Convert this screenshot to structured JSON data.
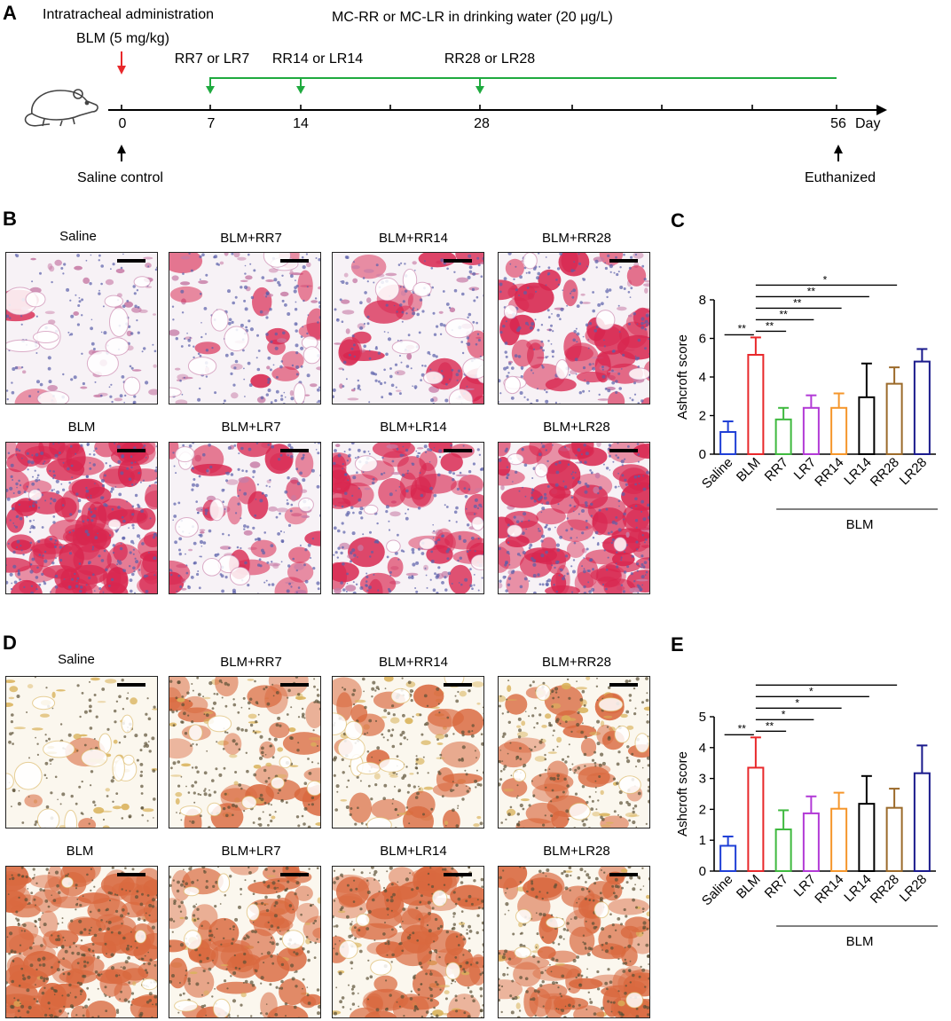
{
  "panel_labels": {
    "a": "A",
    "b": "B",
    "c": "C",
    "d": "D",
    "e": "E"
  },
  "timeline": {
    "admin_line1": "Intratracheal administration",
    "admin_line2": "BLM (5 mg/kg)",
    "water_label": "MC-RR or MC-LR in drinking water (20 μg/L)",
    "group7": "RR7 or LR7",
    "group14": "RR14 or LR14",
    "group28": "RR28 or LR28",
    "tick0": "0",
    "tick7": "7",
    "tick14": "14",
    "tick28": "28",
    "tick56": "56",
    "day_label": "Day",
    "saline_label": "Saline control",
    "euthanized_label": "Euthanized",
    "colors": {
      "axis": "#000000",
      "bleomycin_arrow": "#e8282b",
      "toxin_line": "#1faa3f"
    }
  },
  "images_b": {
    "titles": [
      "Saline",
      "BLM+RR7",
      "BLM+RR14",
      "BLM+RR28",
      "BLM",
      "BLM+LR7",
      "BLM+LR14",
      "BLM+LR28"
    ],
    "stain": "masson",
    "colors": {
      "base": "#f7f2f6",
      "tissue": "#c77ca6",
      "fibrosis": "#d8264f",
      "nuclei": "#5a5faa"
    }
  },
  "images_d": {
    "titles": [
      "Saline",
      "BLM+RR7",
      "BLM+RR14",
      "BLM+RR28",
      "BLM",
      "BLM+LR7",
      "BLM+LR14",
      "BLM+LR28"
    ],
    "stain": "sirius",
    "colors": {
      "base": "#fbf7ee",
      "tissue": "#d9b25a",
      "fibrosis": "#d9693f",
      "nuclei": "#5b5036"
    }
  },
  "chart_data": [
    {
      "type": "bar",
      "panel": "C",
      "ylabel": "Ashcroft score",
      "ylim": [
        0,
        8
      ],
      "yticks": [
        0,
        2,
        4,
        6,
        8
      ],
      "categories": [
        "Saline",
        "BLM",
        "RR7",
        "LR7",
        "RR14",
        "LR14",
        "RR28",
        "LR28"
      ],
      "values": [
        1.15,
        5.15,
        1.8,
        2.4,
        2.4,
        2.95,
        3.65,
        4.8
      ],
      "errors": [
        0.55,
        0.9,
        0.6,
        0.65,
        0.75,
        1.75,
        0.85,
        0.65
      ],
      "colors": [
        "#1f3fd6",
        "#e8282b",
        "#3fb93f",
        "#b23ad6",
        "#f5962b",
        "#000000",
        "#9b6a2a",
        "#1a1a8c"
      ],
      "group_label": "BLM",
      "significance": [
        {
          "from": "Saline",
          "to": "BLM",
          "label": "**"
        },
        {
          "from": "BLM",
          "to": "RR7",
          "label": "**"
        },
        {
          "from": "BLM",
          "to": "LR7",
          "label": "**"
        },
        {
          "from": "BLM",
          "to": "RR14",
          "label": "**"
        },
        {
          "from": "BLM",
          "to": "LR14",
          "label": "**"
        },
        {
          "from": "BLM",
          "to": "RR28",
          "label": "*"
        }
      ]
    },
    {
      "type": "bar",
      "panel": "E",
      "ylabel": "Ashcroft score",
      "ylim": [
        0,
        5
      ],
      "yticks": [
        0,
        1,
        2,
        3,
        4,
        5
      ],
      "categories": [
        "Saline",
        "BLM",
        "RR7",
        "LR7",
        "RR14",
        "LR14",
        "RR28",
        "LR28"
      ],
      "values": [
        0.82,
        3.35,
        1.35,
        1.87,
        2.02,
        2.18,
        2.05,
        3.17
      ],
      "errors": [
        0.3,
        0.98,
        0.62,
        0.55,
        0.52,
        0.9,
        0.62,
        0.9
      ],
      "colors": [
        "#1f3fd6",
        "#e8282b",
        "#3fb93f",
        "#b23ad6",
        "#f5962b",
        "#000000",
        "#9b6a2a",
        "#1a1a8c"
      ],
      "group_label": "BLM",
      "significance": [
        {
          "from": "Saline",
          "to": "BLM",
          "label": "**"
        },
        {
          "from": "BLM",
          "to": "RR7",
          "label": "**"
        },
        {
          "from": "BLM",
          "to": "LR7",
          "label": "*"
        },
        {
          "from": "BLM",
          "to": "RR14",
          "label": "*"
        },
        {
          "from": "BLM",
          "to": "LR14",
          "label": "*"
        },
        {
          "from": "BLM",
          "to": "RR28",
          "label": "*"
        }
      ]
    }
  ]
}
